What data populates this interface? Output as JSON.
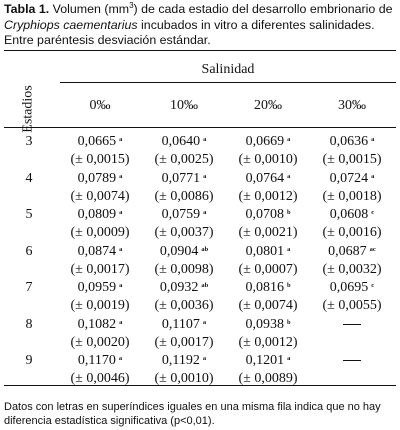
{
  "caption": {
    "label": "Tabla 1.",
    "part1": " Volumen (mm",
    "sup": "3",
    "part2": ") de cada estadio del desarrollo embrionario de ",
    "species": "Cryphiops caementarius",
    "part3": " incubados in vitro a diferentes salinidades. Entre paréntesis desviación estándar."
  },
  "table": {
    "stub_header": "Estadios",
    "group_header": "Salinidad",
    "columns": [
      "0‰",
      "10‰",
      "20‰",
      "30‰"
    ],
    "rows": [
      {
        "stage": "3",
        "cells": [
          {
            "mean": "0,0665",
            "sup": "a",
            "sd": "(± 0,0015)"
          },
          {
            "mean": "0,0640",
            "sup": "a",
            "sd": "(± 0,0025)"
          },
          {
            "mean": "0,0669",
            "sup": "a",
            "sd": "(± 0,0010)"
          },
          {
            "mean": "0,0636",
            "sup": "a",
            "sd": "(± 0,0015)"
          }
        ]
      },
      {
        "stage": "4",
        "cells": [
          {
            "mean": "0,0789",
            "sup": "a",
            "sd": "(± 0,0074)"
          },
          {
            "mean": "0,0771",
            "sup": "a",
            "sd": "(± 0,0086)"
          },
          {
            "mean": "0,0764",
            "sup": "a",
            "sd": "(± 0,0012)"
          },
          {
            "mean": "0,0724",
            "sup": "a",
            "sd": "(± 0,0018)"
          }
        ]
      },
      {
        "stage": "5",
        "cells": [
          {
            "mean": "0,0809",
            "sup": "a",
            "sd": "(± 0,0009)"
          },
          {
            "mean": "0,0759",
            "sup": "a",
            "sd": "(± 0,0037)"
          },
          {
            "mean": "0,0708",
            "sup": "b",
            "sd": "(± 0,0021)"
          },
          {
            "mean": "0,0608",
            "sup": "c",
            "sd": "(± 0,0016)"
          }
        ]
      },
      {
        "stage": "6",
        "cells": [
          {
            "mean": "0,0874",
            "sup": "a",
            "sd": "(± 0,0017)"
          },
          {
            "mean": "0,0904",
            "sup": "ab",
            "sd": "(± 0,0098)"
          },
          {
            "mean": "0,0801",
            "sup": "a",
            "sd": "(± 0,0007)"
          },
          {
            "mean": "0,0687",
            "sup": "ac",
            "sd": "(± 0,0032)"
          }
        ]
      },
      {
        "stage": "7",
        "cells": [
          {
            "mean": "0,0959",
            "sup": "a",
            "sd": "(± 0,0019)"
          },
          {
            "mean": "0,0932",
            "sup": "ab",
            "sd": "(± 0,0036)"
          },
          {
            "mean": "0,0816",
            "sup": "b",
            "sd": "(± 0,0074)"
          },
          {
            "mean": "0,0695",
            "sup": "c",
            "sd": "(± 0,0055)"
          }
        ]
      },
      {
        "stage": "8",
        "cells": [
          {
            "mean": "0,1082",
            "sup": "a",
            "sd": "(± 0,0020)"
          },
          {
            "mean": "0,1107",
            "sup": "a",
            "sd": "(± 0,0017)"
          },
          {
            "mean": "0,0938",
            "sup": "b",
            "sd": "(± 0,0012)"
          },
          {
            "dash": true
          }
        ]
      },
      {
        "stage": "9",
        "cells": [
          {
            "mean": "0,1170",
            "sup": "a",
            "sd": "(± 0,0046)"
          },
          {
            "mean": "0,1192",
            "sup": "a",
            "sd": "(± 0,0010)"
          },
          {
            "mean": "0,1201",
            "sup": "a",
            "sd": "(± 0,0089)"
          },
          {
            "dash": true
          }
        ]
      }
    ]
  },
  "footnote": "Datos con letras en superíndices iguales en una misma fila indica que no hay diferencia estadística significativa (p<0,01)."
}
